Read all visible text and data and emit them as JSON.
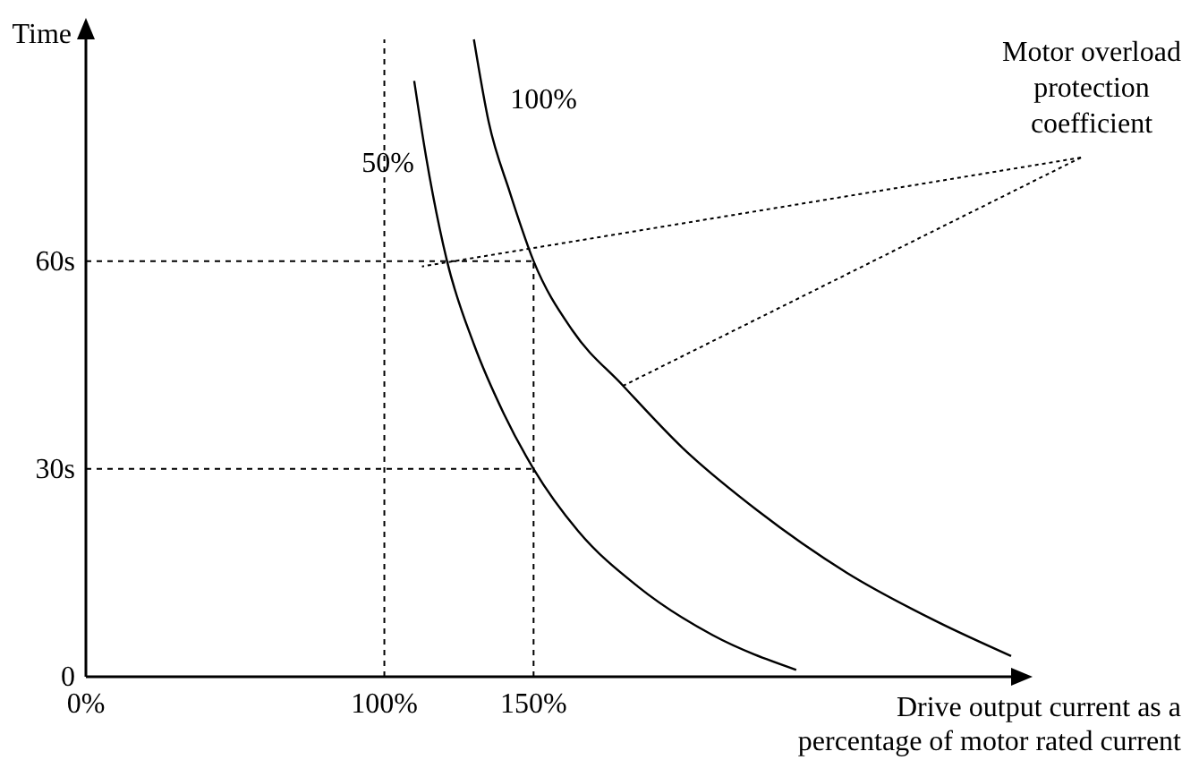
{
  "chart_data": {
    "type": "line",
    "xlabel": "Drive output current as a percentage of motor rated current",
    "ylabel": "Time",
    "xlim": [
      0,
      310
    ],
    "ylim": [
      0,
      92
    ],
    "xticks": [
      {
        "value": 0,
        "label": "0%"
      },
      {
        "value": 100,
        "label": "100%"
      },
      {
        "value": 150,
        "label": "150%"
      }
    ],
    "yticks": [
      0,
      {
        "value": 30,
        "label": "30s"
      },
      {
        "value": 60,
        "label": "60s"
      }
    ],
    "series": [
      {
        "name": "100%",
        "color": "#000000",
        "x": [
          130,
          135,
          142,
          150,
          163,
          180,
          200,
          225,
          255,
          285,
          310
        ],
        "values": [
          92,
          80,
          70,
          60,
          50,
          42,
          33,
          24,
          15,
          8,
          3
        ]
      },
      {
        "name": "50%",
        "color": "#000000",
        "x": [
          110,
          114,
          121,
          130,
          140,
          150,
          165,
          185,
          210,
          238
        ],
        "values": [
          86,
          75,
          60,
          48,
          38,
          30,
          21,
          13,
          6,
          1
        ]
      }
    ],
    "ref_lines": [
      {
        "axis": "x",
        "value": 100,
        "line_style": "dashed"
      },
      {
        "axis": "x",
        "value": 150,
        "line_style": "dashed"
      },
      {
        "axis": "y",
        "value": 30,
        "line_style": "dashed"
      },
      {
        "axis": "y",
        "value": 60,
        "line_style": "dashed"
      }
    ],
    "annotations": [
      "Motor overload protection coefficient"
    ],
    "grid": false,
    "marker": "none",
    "line_style": "solid"
  }
}
